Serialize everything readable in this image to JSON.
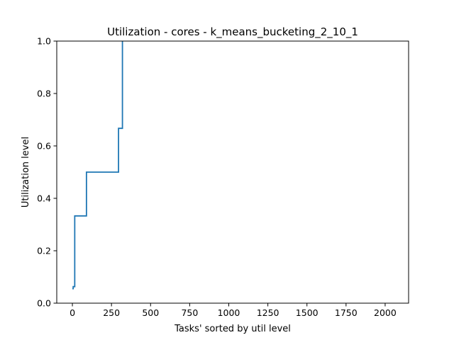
{
  "chart_data": {
    "type": "line",
    "title": "Utilization - cores - k_means_bucketing_2_10_1",
    "xlabel": "Tasks' sorted by util level",
    "ylabel": "Utilization level",
    "xlim": [
      -100,
      2150
    ],
    "ylim": [
      0.0,
      1.0
    ],
    "xticks": [
      0,
      250,
      500,
      750,
      1000,
      1250,
      1500,
      1750,
      2000
    ],
    "xtick_labels": [
      "0",
      "250",
      "500",
      "750",
      "1000",
      "1250",
      "1500",
      "1750",
      "2000"
    ],
    "yticks": [
      0.0,
      0.2,
      0.4,
      0.6,
      0.8,
      1.0
    ],
    "ytick_labels": [
      "0.0",
      "0.2",
      "0.4",
      "0.6",
      "0.8",
      "1.0"
    ],
    "grid": false,
    "series": [
      {
        "name": "cores",
        "color": "#1f77b4",
        "x": [
          0,
          5,
          5,
          15,
          15,
          90,
          90,
          295,
          295,
          320,
          320
        ],
        "y": [
          0.055,
          0.055,
          0.063,
          0.063,
          0.333,
          0.333,
          0.5,
          0.5,
          0.667,
          0.667,
          1.0
        ]
      }
    ]
  }
}
